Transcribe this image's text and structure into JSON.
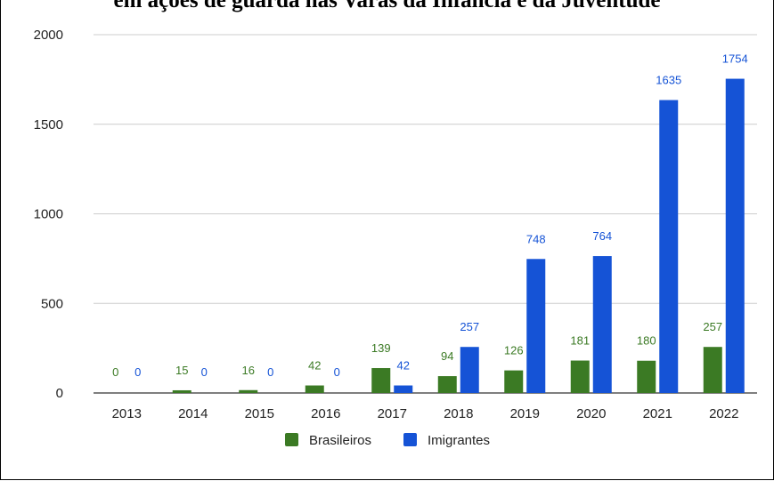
{
  "chart_data": {
    "type": "bar",
    "title": "em ações de guarda nas Varas da Infância e da Juventude",
    "categories": [
      "2013",
      "2014",
      "2015",
      "2016",
      "2017",
      "2018",
      "2019",
      "2020",
      "2021",
      "2022"
    ],
    "series": [
      {
        "name": "Brasileiros",
        "values": [
          0,
          15,
          16,
          42,
          139,
          94,
          126,
          181,
          180,
          257
        ],
        "color": "#3b7a24"
      },
      {
        "name": "Imigrantes",
        "values": [
          0,
          0,
          0,
          0,
          42,
          257,
          748,
          764,
          1635,
          1754
        ],
        "color": "#1553d6"
      }
    ],
    "y_ticks": [
      "0",
      "500",
      "1000",
      "1500",
      "2000"
    ],
    "ylim": [
      0,
      2000
    ],
    "grid": true,
    "legend_position": "bottom",
    "label_colors": {
      "Brasileiros": "#3b7a24",
      "Imigrantes": "#1553d6"
    }
  }
}
